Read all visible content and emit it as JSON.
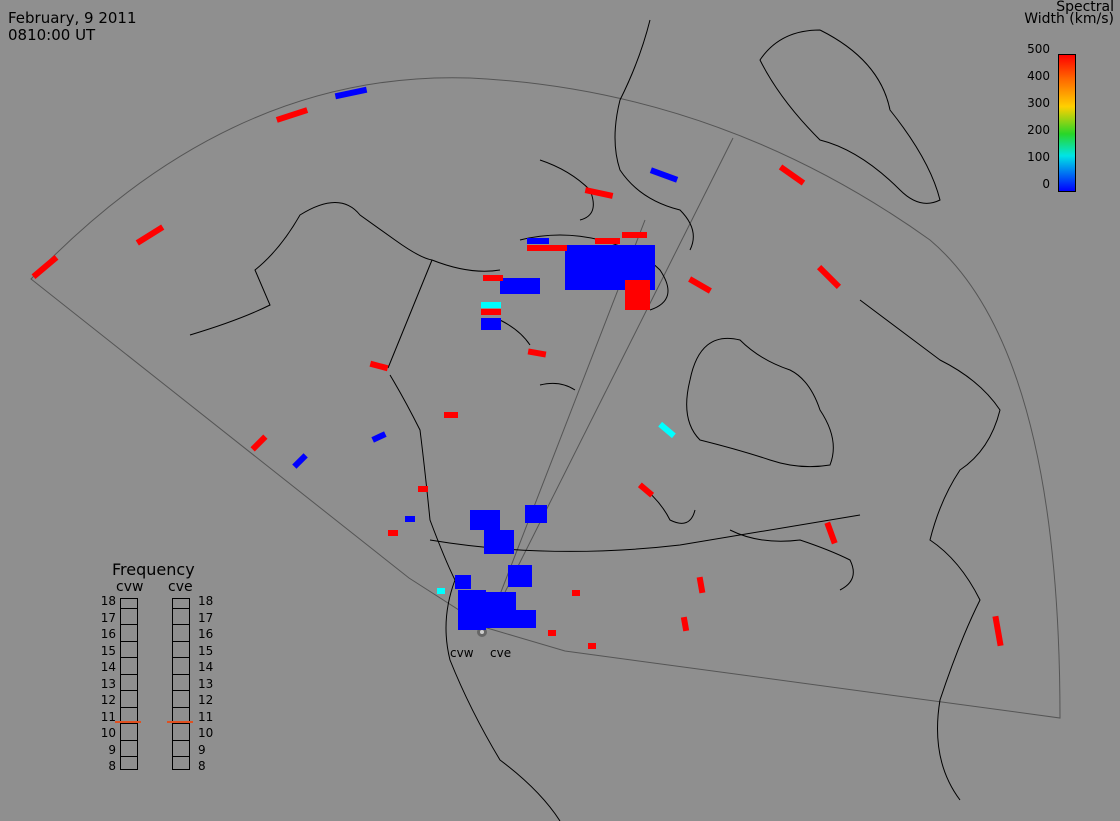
{
  "header": {
    "date": "February, 9 2011",
    "time": "0810:00 UT"
  },
  "colorbar": {
    "title_line1": "Spectral",
    "title_line2": "Width (km/s)",
    "ticks": [
      "500",
      "400",
      "300",
      "200",
      "100",
      "0"
    ]
  },
  "frequency_panel": {
    "title": "Frequency",
    "radars": [
      "cvw",
      "cve"
    ],
    "scale": [
      "18",
      "17",
      "16",
      "15",
      "14",
      "13",
      "12",
      "11",
      "10",
      "9",
      "8"
    ],
    "cvw_value_mhz": 10.8,
    "cve_value_mhz": 10.8
  },
  "sites": [
    "cvw",
    "cve"
  ],
  "colors": {
    "background": "#8f8f8f",
    "high": "#ff0000",
    "low": "#0000ff",
    "mid": "#00ffff",
    "freq_marker": "#e05020"
  }
}
